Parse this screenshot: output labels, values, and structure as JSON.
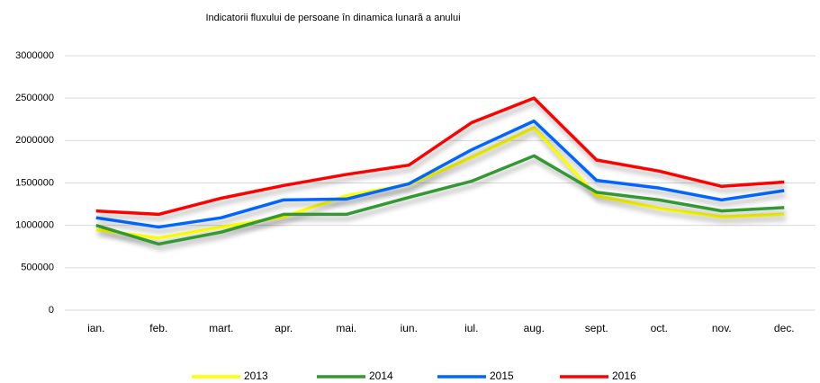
{
  "chart_data": {
    "type": "line",
    "title": "Indicatorii fluxului de persoane în dinamica lunară a anului",
    "categories": [
      "ian.",
      "feb.",
      "mart.",
      "apr.",
      "mai.",
      "iun.",
      "iul.",
      "aug.",
      "sept.",
      "oct.",
      "nov.",
      "dec."
    ],
    "series": [
      {
        "name": "2013",
        "color": "#ffff00",
        "values": [
          950000,
          850000,
          980000,
          1100000,
          1350000,
          1480000,
          1800000,
          2150000,
          1350000,
          1200000,
          1100000,
          1130000
        ]
      },
      {
        "name": "2014",
        "color": "#339933",
        "values": [
          1000000,
          780000,
          920000,
          1130000,
          1130000,
          1330000,
          1520000,
          1820000,
          1390000,
          1300000,
          1170000,
          1210000
        ]
      },
      {
        "name": "2015",
        "color": "#0066ff",
        "values": [
          1090000,
          980000,
          1090000,
          1300000,
          1310000,
          1490000,
          1890000,
          2230000,
          1530000,
          1440000,
          1300000,
          1410000
        ]
      },
      {
        "name": "2016",
        "color": "#ff0000",
        "values": [
          1170000,
          1130000,
          1320000,
          1470000,
          1600000,
          1710000,
          2210000,
          2500000,
          1770000,
          1640000,
          1460000,
          1510000
        ]
      }
    ],
    "ylim": [
      0,
      3000000
    ],
    "yticks": [
      0,
      500000,
      1000000,
      1500000,
      2000000,
      2500000,
      3000000
    ],
    "grid": true,
    "legend": "bottom"
  }
}
